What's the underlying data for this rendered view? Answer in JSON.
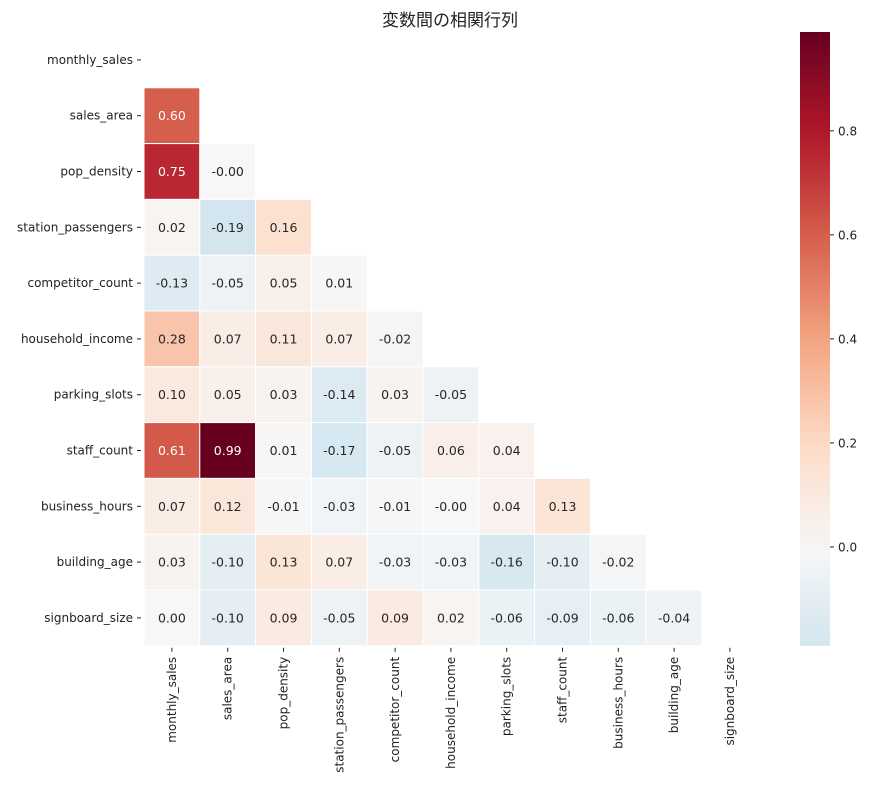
{
  "chart_data": {
    "type": "heatmap",
    "title": "変数間の相関行列",
    "xlabel": "",
    "ylabel": "",
    "colormap": "RdBu_r",
    "mask": "upper triangle (including diagonal)",
    "variables": [
      "monthly_sales",
      "sales_area",
      "pop_density",
      "station_passengers",
      "competitor_count",
      "household_income",
      "parking_slots",
      "staff_count",
      "business_hours",
      "building_age",
      "signboard_size"
    ],
    "matrix": [
      [
        null,
        null,
        null,
        null,
        null,
        null,
        null,
        null,
        null,
        null,
        null
      ],
      [
        "0.60",
        null,
        null,
        null,
        null,
        null,
        null,
        null,
        null,
        null,
        null
      ],
      [
        "0.75",
        "-0.00",
        null,
        null,
        null,
        null,
        null,
        null,
        null,
        null,
        null
      ],
      [
        "0.02",
        "-0.19",
        "0.16",
        null,
        null,
        null,
        null,
        null,
        null,
        null,
        null
      ],
      [
        "-0.13",
        "-0.05",
        "0.05",
        "0.01",
        null,
        null,
        null,
        null,
        null,
        null,
        null
      ],
      [
        "0.28",
        "0.07",
        "0.11",
        "0.07",
        "-0.02",
        null,
        null,
        null,
        null,
        null,
        null
      ],
      [
        "0.10",
        "0.05",
        "0.03",
        "-0.14",
        "0.03",
        "-0.05",
        null,
        null,
        null,
        null,
        null
      ],
      [
        "0.61",
        "0.99",
        "0.01",
        "-0.17",
        "-0.05",
        "0.06",
        "0.04",
        null,
        null,
        null,
        null
      ],
      [
        "0.07",
        "0.12",
        "-0.01",
        "-0.03",
        "-0.01",
        "-0.00",
        "0.04",
        "0.13",
        null,
        null,
        null
      ],
      [
        "0.03",
        "-0.10",
        "0.13",
        "0.07",
        "-0.03",
        "-0.03",
        "-0.16",
        "-0.10",
        "-0.02",
        null,
        null
      ],
      [
        "0.00",
        "-0.10",
        "0.09",
        "-0.05",
        "0.09",
        "0.02",
        "-0.06",
        "-0.09",
        "-0.06",
        "-0.04",
        null
      ]
    ],
    "colorbar": {
      "range": [
        -0.19,
        0.99
      ],
      "ticks": [
        "0.0",
        "0.2",
        "0.4",
        "0.6",
        "0.8"
      ],
      "tick_values": [
        0.0,
        0.2,
        0.4,
        0.6,
        0.8
      ],
      "placement": "right"
    },
    "grid": false
  }
}
